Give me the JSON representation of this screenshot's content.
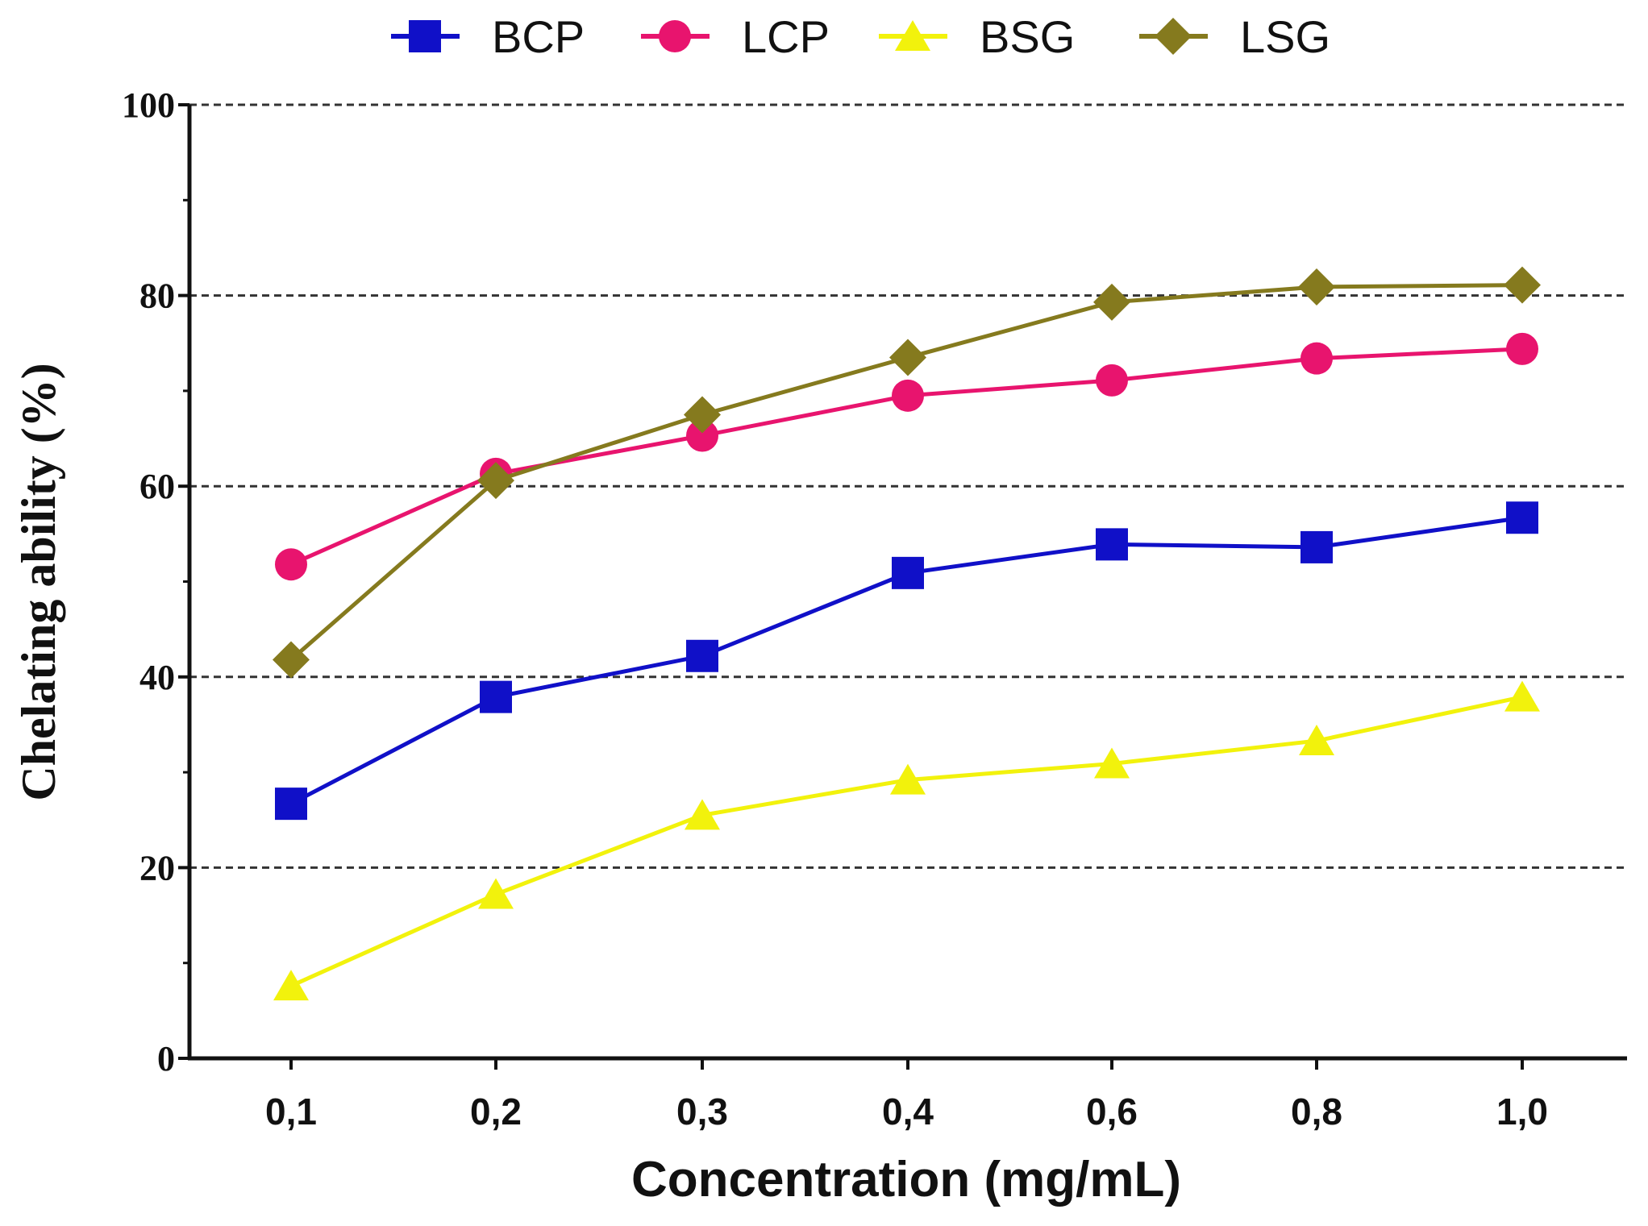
{
  "chart_data": {
    "type": "line",
    "title": "",
    "xlabel": "Concentration (mg/mL)",
    "ylabel": "Chelating ability (%)",
    "categories": [
      "0,1",
      "0,2",
      "0,3",
      "0,4",
      "0,6",
      "0,8",
      "1,0"
    ],
    "ylim": [
      0,
      100
    ],
    "yticks": [
      0,
      20,
      40,
      60,
      80,
      100
    ],
    "grid": "horizontal dashed at major ticks",
    "legend_position": "top",
    "series": [
      {
        "name": "BCP",
        "color": "#1010c8",
        "marker": "square",
        "values": [
          26.7,
          37.9,
          42.2,
          50.9,
          53.9,
          53.6,
          56.7
        ]
      },
      {
        "name": "LCP",
        "color": "#e8146e",
        "marker": "circle",
        "values": [
          51.8,
          61.3,
          65.3,
          69.5,
          71.1,
          73.4,
          74.4
        ]
      },
      {
        "name": "BSG",
        "color": "#f2f20c",
        "marker": "triangle",
        "values": [
          7.6,
          17.2,
          25.5,
          29.2,
          30.9,
          33.3,
          37.9
        ]
      },
      {
        "name": "LSG",
        "color": "#857a1e",
        "marker": "diamond",
        "values": [
          41.8,
          60.6,
          67.5,
          73.5,
          79.3,
          80.9,
          81.1
        ]
      }
    ]
  }
}
